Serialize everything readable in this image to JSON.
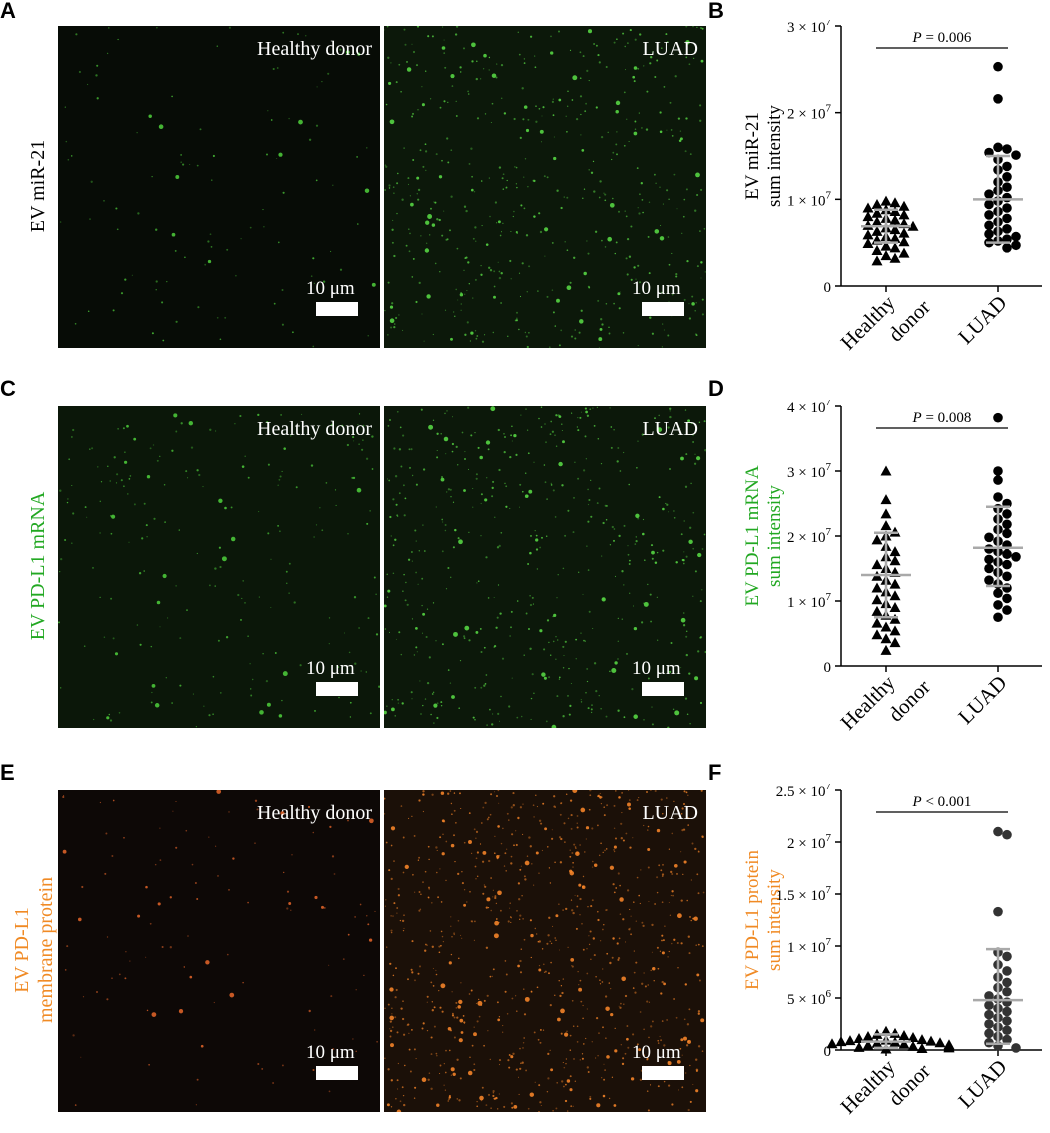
{
  "colors": {
    "green": "#22a822",
    "orange": "#f08a24",
    "gray": "#a9a9a9",
    "dark": "#333333"
  },
  "rows": [
    {
      "letter": "A",
      "plot_letter": "B",
      "row_label": [
        "EV miR-21"
      ],
      "row_label_color": "#000000",
      "left_image": {
        "label": "Healthy donor",
        "scale": "10 μm",
        "particle_color": "#4fd13c",
        "density": "low"
      },
      "right_image": {
        "label": "LUAD",
        "scale": "10 μm",
        "particle_color": "#5be046",
        "density": "high"
      }
    },
    {
      "letter": "C",
      "plot_letter": "D",
      "row_label": [
        "EV PD-L1 mRNA"
      ],
      "row_label_color": "#22a822",
      "left_image": {
        "label": "Healthy donor",
        "scale": "10 μm",
        "particle_color": "#4fd13c",
        "density": "medium"
      },
      "right_image": {
        "label": "LUAD",
        "scale": "10 μm",
        "particle_color": "#5be046",
        "density": "high"
      }
    },
    {
      "letter": "E",
      "plot_letter": "F",
      "row_label": [
        "EV PD-L1",
        "membrane protein"
      ],
      "row_label_color": "#f08a24",
      "left_image": {
        "label": "Healthy donor",
        "scale": "10 μm",
        "particle_color": "#e8662a",
        "density": "low"
      },
      "right_image": {
        "label": "LUAD",
        "scale": "10 μm",
        "particle_color": "#ff8a2a",
        "density": "very-high"
      }
    }
  ],
  "chart_data": [
    {
      "type": "scatter",
      "panel": "B",
      "ylabel": [
        "EV miR-21",
        "sum intensity"
      ],
      "ylabel_color": "#000000",
      "ylim": [
        0,
        30000000
      ],
      "yticks": [
        {
          "value": 0,
          "label": "0",
          "exp": ""
        },
        {
          "value": 10000000,
          "label": "1 × 10",
          "exp": "7"
        },
        {
          "value": 20000000,
          "label": "2 × 10",
          "exp": "7"
        },
        {
          "value": 30000000,
          "label": "3 × 10",
          "exp": "7"
        }
      ],
      "categories": [
        "Healthy donor",
        "LUAD"
      ],
      "xtick_lines": [
        [
          "Healthy",
          "donor"
        ],
        [
          "LUAD"
        ]
      ],
      "pvalue": {
        "prefix": "P",
        "text": " = 0.006"
      },
      "series": [
        {
          "marker": "triangle",
          "color": "#000000",
          "mean": 6900000,
          "sd": [
            5000000,
            8800000
          ],
          "values": [
            9800000,
            9600000,
            9400000,
            9200000,
            9000000,
            8800000,
            8600000,
            8400000,
            8200000,
            8000000,
            7800000,
            7600000,
            7400000,
            7200000,
            7000000,
            6900000,
            6700000,
            6500000,
            6300000,
            6100000,
            5900000,
            5700000,
            5500000,
            5300000,
            5100000,
            4900000,
            4600000,
            4400000,
            4100000,
            3800000,
            3500000,
            3200000,
            2900000
          ]
        },
        {
          "marker": "circle",
          "color": "#000000",
          "mean": 10000000,
          "sd": [
            5000000,
            15000000
          ],
          "values": [
            25300000,
            21600000,
            16000000,
            15800000,
            15400000,
            15100000,
            14600000,
            13800000,
            13400000,
            12600000,
            12000000,
            11400000,
            11000000,
            10600000,
            10200000,
            9800000,
            9400000,
            9000000,
            8600000,
            8200000,
            7800000,
            7400000,
            7000000,
            6600000,
            6300000,
            6000000,
            5700000,
            5400000,
            5200000,
            5000000,
            4700000,
            4400000
          ]
        }
      ]
    },
    {
      "type": "scatter",
      "panel": "D",
      "ylabel": [
        "EV PD-L1 mRNA",
        "sum intensity"
      ],
      "ylabel_color": "#22a822",
      "ylim": [
        0,
        40000000
      ],
      "yticks": [
        {
          "value": 0,
          "label": "0",
          "exp": ""
        },
        {
          "value": 10000000,
          "label": "1 × 10",
          "exp": "7"
        },
        {
          "value": 20000000,
          "label": "2 × 10",
          "exp": "7"
        },
        {
          "value": 30000000,
          "label": "3 × 10",
          "exp": "7"
        },
        {
          "value": 40000000,
          "label": "4 × 10",
          "exp": "7"
        }
      ],
      "categories": [
        "Healthy donor",
        "LUAD"
      ],
      "xtick_lines": [
        [
          "Healthy",
          "donor"
        ],
        [
          "LUAD"
        ]
      ],
      "pvalue": {
        "prefix": "P",
        "text": " = 0.008"
      },
      "series": [
        {
          "marker": "triangle",
          "color": "#000000",
          "mean": 14000000,
          "sd": [
            7500000,
            20500000
          ],
          "values": [
            30000000,
            25600000,
            23400000,
            21600000,
            20600000,
            20000000,
            19400000,
            18400000,
            17600000,
            16800000,
            16200000,
            15600000,
            15000000,
            14400000,
            13800000,
            13200000,
            12600000,
            12000000,
            11400000,
            10800000,
            10200000,
            9600000,
            9000000,
            8400000,
            7800000,
            7200000,
            6600000,
            6000000,
            5400000,
            4800000,
            4200000,
            3600000,
            2400000
          ]
        },
        {
          "marker": "circle",
          "color": "#000000",
          "mean": 18200000,
          "sd": [
            12300000,
            24500000
          ],
          "values": [
            38200000,
            30000000,
            28600000,
            26000000,
            25000000,
            24200000,
            23400000,
            22600000,
            21800000,
            21000000,
            20400000,
            19800000,
            19200000,
            18600000,
            18000000,
            17600000,
            17200000,
            16800000,
            16400000,
            16000000,
            15600000,
            15000000,
            14400000,
            13800000,
            13200000,
            12600000,
            12000000,
            11200000,
            10400000,
            9400000,
            8600000,
            7500000
          ]
        }
      ]
    },
    {
      "type": "scatter",
      "panel": "F",
      "ylabel": [
        "EV PD-L1 protein",
        "sum intensity"
      ],
      "ylabel_color": "#f08a24",
      "ylim": [
        0,
        25000000
      ],
      "yticks": [
        {
          "value": 0,
          "label": "0",
          "exp": ""
        },
        {
          "value": 5000000,
          "label": "5 × 10",
          "exp": "6"
        },
        {
          "value": 10000000,
          "label": "1 × 10",
          "exp": "7"
        },
        {
          "value": 15000000,
          "label": "1.5 × 10",
          "exp": "7"
        },
        {
          "value": 20000000,
          "label": "2 × 10",
          "exp": "7"
        },
        {
          "value": 25000000,
          "label": "2.5 × 10",
          "exp": "7"
        }
      ],
      "categories": [
        "Healthy donor",
        "LUAD"
      ],
      "xtick_lines": [
        [
          "Healthy",
          "donor"
        ],
        [
          "LUAD"
        ]
      ],
      "pvalue": {
        "prefix": "P",
        "text": " < 0.001"
      },
      "series": [
        {
          "marker": "triangle",
          "color": "#000000",
          "mean": 800000,
          "sd": [
            200000,
            1500000
          ],
          "values": [
            1800000,
            1600000,
            1500000,
            1400000,
            1300000,
            1200000,
            1100000,
            1000000,
            950000,
            900000,
            850000,
            800000,
            750000,
            700000,
            650000,
            600000,
            550000,
            500000,
            450000,
            400000,
            350000,
            300000,
            250000,
            200000,
            150000,
            100000
          ]
        },
        {
          "marker": "circle",
          "color": "#333333",
          "mean": 4800000,
          "sd": [
            600000,
            9700000
          ],
          "values": [
            21000000,
            20700000,
            13300000,
            9400000,
            9000000,
            8200000,
            7600000,
            7000000,
            6500000,
            6000000,
            5600000,
            5200000,
            4900000,
            4600000,
            4300000,
            4000000,
            3700000,
            3400000,
            3100000,
            2800000,
            2500000,
            2200000,
            1900000,
            1600000,
            1300000,
            1000000,
            700000,
            400000,
            200000
          ]
        }
      ]
    }
  ]
}
